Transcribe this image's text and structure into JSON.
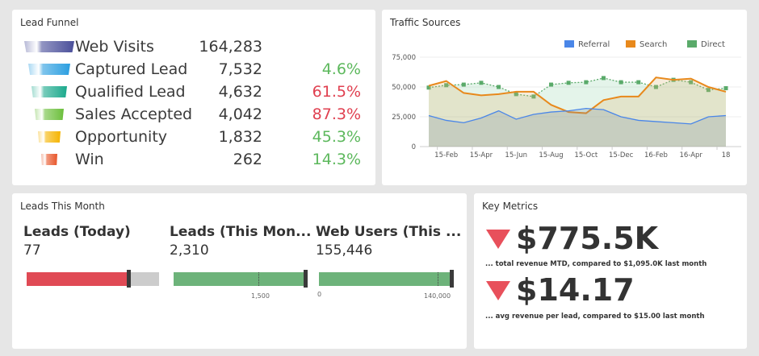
{
  "funnel": {
    "title": "Lead Funnel",
    "rows": [
      {
        "label": "Web Visits",
        "value": "164,283",
        "pct": "",
        "pct_color": "",
        "color": "#4a4f9a"
      },
      {
        "label": "Captured Lead",
        "value": "7,532",
        "pct": "4.6%",
        "pct_color": "#5cb85c",
        "color": "#2a9ee0"
      },
      {
        "label": "Qualified Lead",
        "value": "4,632",
        "pct": "61.5%",
        "pct_color": "#e04050",
        "color": "#1ba98c"
      },
      {
        "label": "Sales Accepted",
        "value": "4,042",
        "pct": "87.3%",
        "pct_color": "#e04050",
        "color": "#6cbf3c"
      },
      {
        "label": "Opportunity",
        "value": "1,832",
        "pct": "45.3%",
        "pct_color": "#5cb85c",
        "color": "#f5b400"
      },
      {
        "label": "Win",
        "value": "262",
        "pct": "14.3%",
        "pct_color": "#5cb85c",
        "color": "#e8562a"
      }
    ]
  },
  "traffic": {
    "title": "Traffic Sources"
  },
  "chart_data": {
    "type": "area",
    "title": "Traffic Sources",
    "ylim": [
      0,
      75000
    ],
    "yticks": [
      "0",
      "25,000",
      "50,000",
      "75,000"
    ],
    "xtick_labels": [
      {
        "i": 1,
        "label": "15-Feb"
      },
      {
        "i": 3,
        "label": "15-Apr"
      },
      {
        "i": 5,
        "label": "15-Jun"
      },
      {
        "i": 7,
        "label": "15-Aug"
      },
      {
        "i": 9,
        "label": "15-Oct"
      },
      {
        "i": 11,
        "label": "15-Dec"
      },
      {
        "i": 13,
        "label": "16-Feb"
      },
      {
        "i": 15,
        "label": "16-Apr"
      },
      {
        "i": 17,
        "label": "18"
      }
    ],
    "legend_position": "top-right",
    "series": [
      {
        "name": "Referral",
        "color": "#4a86e8",
        "values": [
          26000,
          22000,
          20000,
          24000,
          30000,
          23000,
          27000,
          29000,
          30000,
          32000,
          31000,
          25000,
          22000,
          21000,
          20000,
          19000,
          25000,
          26000
        ]
      },
      {
        "name": "Search",
        "color": "#e8891c",
        "values": [
          51000,
          55000,
          45000,
          43000,
          44000,
          46000,
          46000,
          35000,
          29000,
          28000,
          39000,
          42000,
          42000,
          58000,
          56000,
          57000,
          50000,
          46000
        ]
      },
      {
        "name": "Direct",
        "color": "#5aaa6a",
        "values": [
          49500,
          51500,
          52000,
          53500,
          50000,
          44000,
          42000,
          52000,
          53500,
          54000,
          57500,
          54000,
          54000,
          50000,
          56000,
          54000,
          47500,
          49000
        ]
      }
    ]
  },
  "leads": {
    "title": "Leads This Month",
    "kpis": [
      {
        "title": "Leads (Today)",
        "value": "77",
        "fill": 0.8,
        "color": "#e04a55",
        "ticks": []
      },
      {
        "title": "Leads (This Mon...",
        "value": "2,310",
        "fill": 1.0,
        "color": "#6db37a",
        "ticks": [
          "1,500"
        ]
      },
      {
        "title": "Web Users (This ...",
        "value": "155,446",
        "fill": 1.0,
        "color": "#6db37a",
        "ticks": [
          "0",
          "140,000"
        ]
      }
    ]
  },
  "metrics": {
    "title": "Key Metrics",
    "items": [
      {
        "value": "$775.5K",
        "sub": "... total revenue MTD, compared to $1,095.0K last month",
        "trend": "down"
      },
      {
        "value": "$14.17",
        "sub": "... avg revenue per lead, compared to $15.00 last month",
        "trend": "down"
      }
    ]
  }
}
